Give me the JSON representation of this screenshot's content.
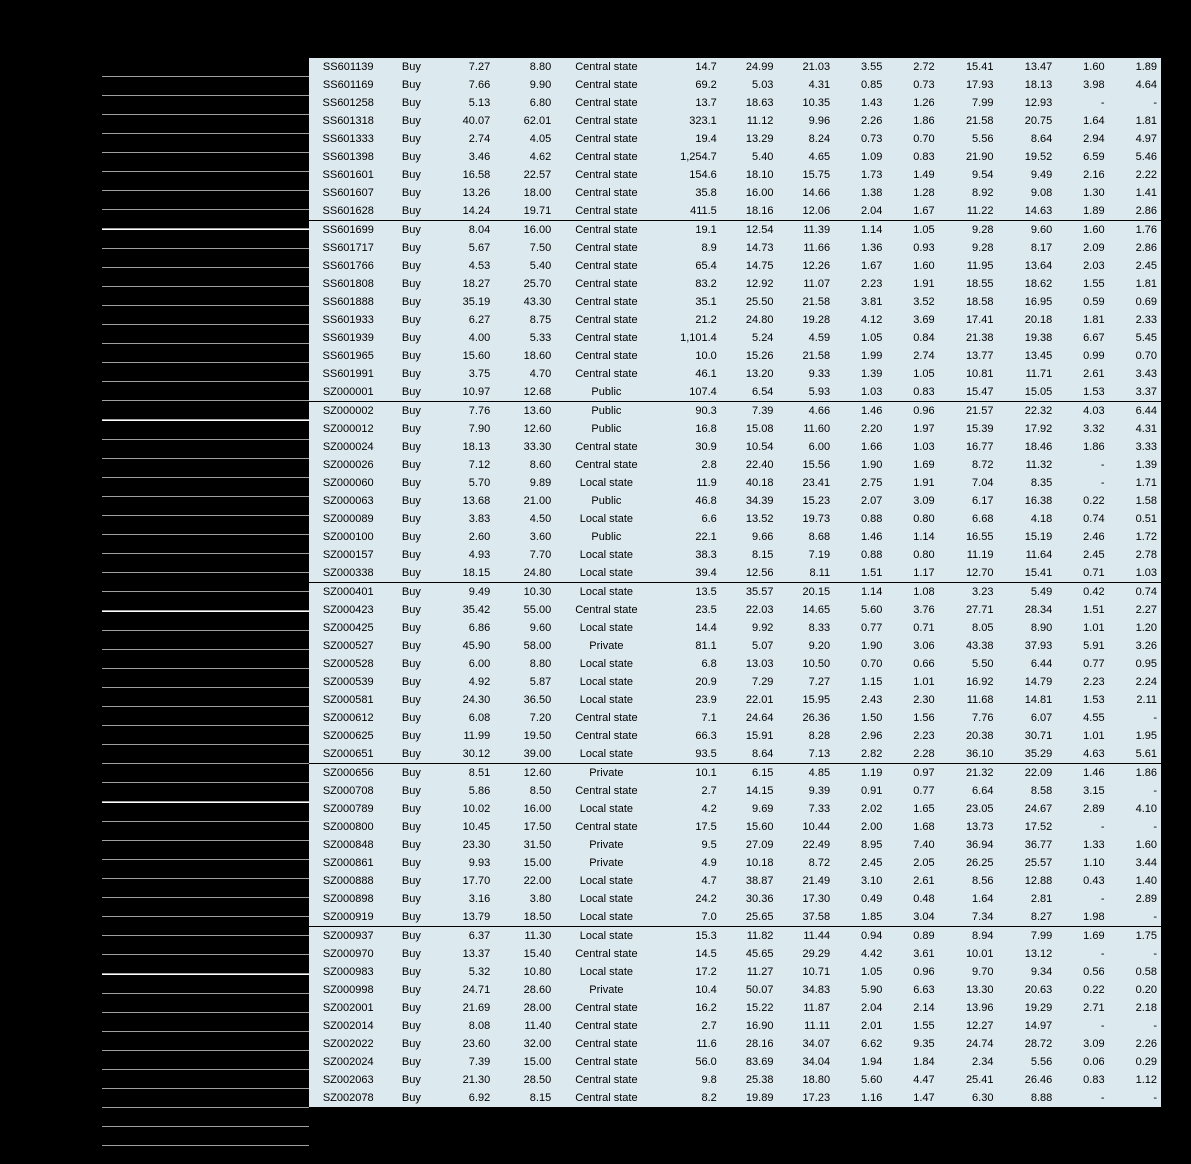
{
  "table": {
    "align": [
      "center",
      "center",
      "right",
      "right",
      "center",
      "right",
      "right",
      "right",
      "right",
      "right",
      "right",
      "right",
      "right",
      "right"
    ],
    "rows": [
      {
        "sep": false,
        "cells": [
          "SS601139",
          "Buy",
          "7.27",
          "8.80",
          "Central state",
          "14.7",
          "24.99",
          "21.03",
          "3.55",
          "2.72",
          "15.41",
          "13.47",
          "1.60",
          "1.89"
        ]
      },
      {
        "sep": false,
        "cells": [
          "SS601169",
          "Buy",
          "7.66",
          "9.90",
          "Central state",
          "69.2",
          "5.03",
          "4.31",
          "0.85",
          "0.73",
          "17.93",
          "18.13",
          "3.98",
          "4.64"
        ]
      },
      {
        "sep": false,
        "cells": [
          "SS601258",
          "Buy",
          "5.13",
          "6.80",
          "Central state",
          "13.7",
          "18.63",
          "10.35",
          "1.43",
          "1.26",
          "7.99",
          "12.93",
          "-",
          "-"
        ]
      },
      {
        "sep": false,
        "cells": [
          "SS601318",
          "Buy",
          "40.07",
          "62.01",
          "Central state",
          "323.1",
          "11.12",
          "9.96",
          "2.26",
          "1.86",
          "21.58",
          "20.75",
          "1.64",
          "1.81"
        ]
      },
      {
        "sep": false,
        "cells": [
          "SS601333",
          "Buy",
          "2.74",
          "4.05",
          "Central state",
          "19.4",
          "13.29",
          "8.24",
          "0.73",
          "0.70",
          "5.56",
          "8.64",
          "2.94",
          "4.97"
        ]
      },
      {
        "sep": false,
        "cells": [
          "SS601398",
          "Buy",
          "3.46",
          "4.62",
          "Central state",
          "1,254.7",
          "5.40",
          "4.65",
          "1.09",
          "0.83",
          "21.90",
          "19.52",
          "6.59",
          "5.46"
        ]
      },
      {
        "sep": false,
        "cells": [
          "SS601601",
          "Buy",
          "16.58",
          "22.57",
          "Central state",
          "154.6",
          "18.10",
          "15.75",
          "1.73",
          "1.49",
          "9.54",
          "9.49",
          "2.16",
          "2.22"
        ]
      },
      {
        "sep": false,
        "cells": [
          "SS601607",
          "Buy",
          "13.26",
          "18.00",
          "Central state",
          "35.8",
          "16.00",
          "14.66",
          "1.38",
          "1.28",
          "8.92",
          "9.08",
          "1.30",
          "1.41"
        ]
      },
      {
        "sep": false,
        "cells": [
          "SS601628",
          "Buy",
          "14.24",
          "19.71",
          "Central state",
          "411.5",
          "18.16",
          "12.06",
          "2.04",
          "1.67",
          "11.22",
          "14.63",
          "1.89",
          "2.86"
        ]
      },
      {
        "sep": true,
        "cells": [
          "SS601699",
          "Buy",
          "8.04",
          "16.00",
          "Central state",
          "19.1",
          "12.54",
          "11.39",
          "1.14",
          "1.05",
          "9.28",
          "9.60",
          "1.60",
          "1.76"
        ]
      },
      {
        "sep": false,
        "cells": [
          "SS601717",
          "Buy",
          "5.67",
          "7.50",
          "Central state",
          "8.9",
          "14.73",
          "11.66",
          "1.36",
          "0.93",
          "9.28",
          "8.17",
          "2.09",
          "2.86"
        ]
      },
      {
        "sep": false,
        "cells": [
          "SS601766",
          "Buy",
          "4.53",
          "5.40",
          "Central state",
          "65.4",
          "14.75",
          "12.26",
          "1.67",
          "1.60",
          "11.95",
          "13.64",
          "2.03",
          "2.45"
        ]
      },
      {
        "sep": false,
        "cells": [
          "SS601808",
          "Buy",
          "18.27",
          "25.70",
          "Central state",
          "83.2",
          "12.92",
          "11.07",
          "2.23",
          "1.91",
          "18.55",
          "18.62",
          "1.55",
          "1.81"
        ]
      },
      {
        "sep": false,
        "cells": [
          "SS601888",
          "Buy",
          "35.19",
          "43.30",
          "Central state",
          "35.1",
          "25.50",
          "21.58",
          "3.81",
          "3.52",
          "18.58",
          "16.95",
          "0.59",
          "0.69"
        ]
      },
      {
        "sep": false,
        "cells": [
          "SS601933",
          "Buy",
          "6.27",
          "8.75",
          "Central state",
          "21.2",
          "24.80",
          "19.28",
          "4.12",
          "3.69",
          "17.41",
          "20.18",
          "1.81",
          "2.33"
        ]
      },
      {
        "sep": false,
        "cells": [
          "SS601939",
          "Buy",
          "4.00",
          "5.33",
          "Central state",
          "1,101.4",
          "5.24",
          "4.59",
          "1.05",
          "0.84",
          "21.38",
          "19.38",
          "6.67",
          "5.45"
        ]
      },
      {
        "sep": false,
        "cells": [
          "SS601965",
          "Buy",
          "15.60",
          "18.60",
          "Central state",
          "10.0",
          "15.26",
          "21.58",
          "1.99",
          "2.74",
          "13.77",
          "13.45",
          "0.99",
          "0.70"
        ]
      },
      {
        "sep": false,
        "cells": [
          "SS601991",
          "Buy",
          "3.75",
          "4.70",
          "Central state",
          "46.1",
          "13.20",
          "9.33",
          "1.39",
          "1.05",
          "10.81",
          "11.71",
          "2.61",
          "3.43"
        ]
      },
      {
        "sep": false,
        "cells": [
          "SZ000001",
          "Buy",
          "10.97",
          "12.68",
          "Public",
          "107.4",
          "6.54",
          "5.93",
          "1.03",
          "0.83",
          "15.47",
          "15.05",
          "1.53",
          "3.37"
        ]
      },
      {
        "sep": true,
        "cells": [
          "SZ000002",
          "Buy",
          "7.76",
          "13.60",
          "Public",
          "90.3",
          "7.39",
          "4.66",
          "1.46",
          "0.96",
          "21.57",
          "22.32",
          "4.03",
          "6.44"
        ]
      },
      {
        "sep": false,
        "cells": [
          "SZ000012",
          "Buy",
          "7.90",
          "12.60",
          "Public",
          "16.8",
          "15.08",
          "11.60",
          "2.20",
          "1.97",
          "15.39",
          "17.92",
          "3.32",
          "4.31"
        ]
      },
      {
        "sep": false,
        "cells": [
          "SZ000024",
          "Buy",
          "18.13",
          "33.30",
          "Central state",
          "30.9",
          "10.54",
          "6.00",
          "1.66",
          "1.03",
          "16.77",
          "18.46",
          "1.86",
          "3.33"
        ]
      },
      {
        "sep": false,
        "cells": [
          "SZ000026",
          "Buy",
          "7.12",
          "8.60",
          "Central state",
          "2.8",
          "22.40",
          "15.56",
          "1.90",
          "1.69",
          "8.72",
          "11.32",
          "-",
          "1.39"
        ]
      },
      {
        "sep": false,
        "cells": [
          "SZ000060",
          "Buy",
          "5.70",
          "9.89",
          "Local state",
          "11.9",
          "40.18",
          "23.41",
          "2.75",
          "1.91",
          "7.04",
          "8.35",
          "-",
          "1.71"
        ]
      },
      {
        "sep": false,
        "cells": [
          "SZ000063",
          "Buy",
          "13.68",
          "21.00",
          "Public",
          "46.8",
          "34.39",
          "15.23",
          "2.07",
          "3.09",
          "6.17",
          "16.38",
          "0.22",
          "1.58"
        ]
      },
      {
        "sep": false,
        "cells": [
          "SZ000089",
          "Buy",
          "3.83",
          "4.50",
          "Local state",
          "6.6",
          "13.52",
          "19.73",
          "0.88",
          "0.80",
          "6.68",
          "4.18",
          "0.74",
          "0.51"
        ]
      },
      {
        "sep": false,
        "cells": [
          "SZ000100",
          "Buy",
          "2.60",
          "3.60",
          "Public",
          "22.1",
          "9.66",
          "8.68",
          "1.46",
          "1.14",
          "16.55",
          "15.19",
          "2.46",
          "1.72"
        ]
      },
      {
        "sep": false,
        "cells": [
          "SZ000157",
          "Buy",
          "4.93",
          "7.70",
          "Local state",
          "38.3",
          "8.15",
          "7.19",
          "0.88",
          "0.80",
          "11.19",
          "11.64",
          "2.45",
          "2.78"
        ]
      },
      {
        "sep": false,
        "cells": [
          "SZ000338",
          "Buy",
          "18.15",
          "24.80",
          "Local state",
          "39.4",
          "12.56",
          "8.11",
          "1.51",
          "1.17",
          "12.70",
          "15.41",
          "0.71",
          "1.03"
        ]
      },
      {
        "sep": true,
        "cells": [
          "SZ000401",
          "Buy",
          "9.49",
          "10.30",
          "Local state",
          "13.5",
          "35.57",
          "20.15",
          "1.14",
          "1.08",
          "3.23",
          "5.49",
          "0.42",
          "0.74"
        ]
      },
      {
        "sep": false,
        "cells": [
          "SZ000423",
          "Buy",
          "35.42",
          "55.00",
          "Central state",
          "23.5",
          "22.03",
          "14.65",
          "5.60",
          "3.76",
          "27.71",
          "28.34",
          "1.51",
          "2.27"
        ]
      },
      {
        "sep": false,
        "cells": [
          "SZ000425",
          "Buy",
          "6.86",
          "9.60",
          "Local state",
          "14.4",
          "9.92",
          "8.33",
          "0.77",
          "0.71",
          "8.05",
          "8.90",
          "1.01",
          "1.20"
        ]
      },
      {
        "sep": false,
        "cells": [
          "SZ000527",
          "Buy",
          "45.90",
          "58.00",
          "Private",
          "81.1",
          "5.07",
          "9.20",
          "1.90",
          "3.06",
          "43.38",
          "37.93",
          "5.91",
          "3.26"
        ]
      },
      {
        "sep": false,
        "cells": [
          "SZ000528",
          "Buy",
          "6.00",
          "8.80",
          "Local state",
          "6.8",
          "13.03",
          "10.50",
          "0.70",
          "0.66",
          "5.50",
          "6.44",
          "0.77",
          "0.95"
        ]
      },
      {
        "sep": false,
        "cells": [
          "SZ000539",
          "Buy",
          "4.92",
          "5.87",
          "Local state",
          "20.9",
          "7.29",
          "7.27",
          "1.15",
          "1.01",
          "16.92",
          "14.79",
          "2.23",
          "2.24"
        ]
      },
      {
        "sep": false,
        "cells": [
          "SZ000581",
          "Buy",
          "24.30",
          "36.50",
          "Local state",
          "23.9",
          "22.01",
          "15.95",
          "2.43",
          "2.30",
          "11.68",
          "14.81",
          "1.53",
          "2.11"
        ]
      },
      {
        "sep": false,
        "cells": [
          "SZ000612",
          "Buy",
          "6.08",
          "7.20",
          "Central state",
          "7.1",
          "24.64",
          "26.36",
          "1.50",
          "1.56",
          "7.76",
          "6.07",
          "4.55",
          "-"
        ]
      },
      {
        "sep": false,
        "cells": [
          "SZ000625",
          "Buy",
          "11.99",
          "19.50",
          "Central state",
          "66.3",
          "15.91",
          "8.28",
          "2.96",
          "2.23",
          "20.38",
          "30.71",
          "1.01",
          "1.95"
        ]
      },
      {
        "sep": false,
        "cells": [
          "SZ000651",
          "Buy",
          "30.12",
          "39.00",
          "Local state",
          "93.5",
          "8.64",
          "7.13",
          "2.82",
          "2.28",
          "36.10",
          "35.29",
          "4.63",
          "5.61"
        ]
      },
      {
        "sep": true,
        "cells": [
          "SZ000656",
          "Buy",
          "8.51",
          "12.60",
          "Private",
          "10.1",
          "6.15",
          "4.85",
          "1.19",
          "0.97",
          "21.32",
          "22.09",
          "1.46",
          "1.86"
        ]
      },
      {
        "sep": false,
        "cells": [
          "SZ000708",
          "Buy",
          "5.86",
          "8.50",
          "Central state",
          "2.7",
          "14.15",
          "9.39",
          "0.91",
          "0.77",
          "6.64",
          "8.58",
          "3.15",
          "-"
        ]
      },
      {
        "sep": false,
        "cells": [
          "SZ000789",
          "Buy",
          "10.02",
          "16.00",
          "Local state",
          "4.2",
          "9.69",
          "7.33",
          "2.02",
          "1.65",
          "23.05",
          "24.67",
          "2.89",
          "4.10"
        ]
      },
      {
        "sep": false,
        "cells": [
          "SZ000800",
          "Buy",
          "10.45",
          "17.50",
          "Central state",
          "17.5",
          "15.60",
          "10.44",
          "2.00",
          "1.68",
          "13.73",
          "17.52",
          "-",
          "-"
        ]
      },
      {
        "sep": false,
        "cells": [
          "SZ000848",
          "Buy",
          "23.30",
          "31.50",
          "Private",
          "9.5",
          "27.09",
          "22.49",
          "8.95",
          "7.40",
          "36.94",
          "36.77",
          "1.33",
          "1.60"
        ]
      },
      {
        "sep": false,
        "cells": [
          "SZ000861",
          "Buy",
          "9.93",
          "15.00",
          "Private",
          "4.9",
          "10.18",
          "8.72",
          "2.45",
          "2.05",
          "26.25",
          "25.57",
          "1.10",
          "3.44"
        ]
      },
      {
        "sep": false,
        "cells": [
          "SZ000888",
          "Buy",
          "17.70",
          "22.00",
          "Local state",
          "4.7",
          "38.87",
          "21.49",
          "3.10",
          "2.61",
          "8.56",
          "12.88",
          "0.43",
          "1.40"
        ]
      },
      {
        "sep": false,
        "cells": [
          "SZ000898",
          "Buy",
          "3.16",
          "3.80",
          "Local state",
          "24.2",
          "30.36",
          "17.30",
          "0.49",
          "0.48",
          "1.64",
          "2.81",
          "-",
          "2.89"
        ]
      },
      {
        "sep": false,
        "cells": [
          "SZ000919",
          "Buy",
          "13.79",
          "18.50",
          "Local state",
          "7.0",
          "25.65",
          "37.58",
          "1.85",
          "3.04",
          "7.34",
          "8.27",
          "1.98",
          "-"
        ]
      },
      {
        "sep": true,
        "cells": [
          "SZ000937",
          "Buy",
          "6.37",
          "11.30",
          "Local state",
          "15.3",
          "11.82",
          "11.44",
          "0.94",
          "0.89",
          "8.94",
          "7.99",
          "1.69",
          "1.75"
        ]
      },
      {
        "sep": false,
        "cells": [
          "SZ000970",
          "Buy",
          "13.37",
          "15.40",
          "Central state",
          "14.5",
          "45.65",
          "29.29",
          "4.42",
          "3.61",
          "10.01",
          "13.12",
          "-",
          "-"
        ]
      },
      {
        "sep": false,
        "cells": [
          "SZ000983",
          "Buy",
          "5.32",
          "10.80",
          "Local state",
          "17.2",
          "11.27",
          "10.71",
          "1.05",
          "0.96",
          "9.70",
          "9.34",
          "0.56",
          "0.58"
        ]
      },
      {
        "sep": false,
        "cells": [
          "SZ000998",
          "Buy",
          "24.71",
          "28.60",
          "Private",
          "10.4",
          "50.07",
          "34.83",
          "5.90",
          "6.63",
          "13.30",
          "20.63",
          "0.22",
          "0.20"
        ]
      },
      {
        "sep": false,
        "cells": [
          "SZ002001",
          "Buy",
          "21.69",
          "28.00",
          "Central state",
          "16.2",
          "15.22",
          "11.87",
          "2.04",
          "2.14",
          "13.96",
          "19.29",
          "2.71",
          "2.18"
        ]
      },
      {
        "sep": false,
        "cells": [
          "SZ002014",
          "Buy",
          "8.08",
          "11.40",
          "Central state",
          "2.7",
          "16.90",
          "11.11",
          "2.01",
          "1.55",
          "12.27",
          "14.97",
          "-",
          "-"
        ]
      },
      {
        "sep": false,
        "cells": [
          "SZ002022",
          "Buy",
          "23.60",
          "32.00",
          "Central state",
          "11.6",
          "28.16",
          "34.07",
          "6.62",
          "9.35",
          "24.74",
          "28.72",
          "3.09",
          "2.26"
        ]
      },
      {
        "sep": false,
        "cells": [
          "SZ002024",
          "Buy",
          "7.39",
          "15.00",
          "Central state",
          "56.0",
          "83.69",
          "34.04",
          "1.94",
          "1.84",
          "2.34",
          "5.56",
          "0.06",
          "0.29"
        ]
      },
      {
        "sep": false,
        "cells": [
          "SZ002063",
          "Buy",
          "21.30",
          "28.50",
          "Central state",
          "9.8",
          "25.38",
          "18.80",
          "5.60",
          "4.47",
          "25.41",
          "26.46",
          "0.83",
          "1.12"
        ]
      },
      {
        "sep": false,
        "cells": [
          "SZ002078",
          "Buy",
          "6.92",
          "8.15",
          "Central state",
          "8.2",
          "19.89",
          "17.23",
          "1.16",
          "1.47",
          "6.30",
          "8.88",
          "-",
          "-"
        ]
      }
    ]
  }
}
